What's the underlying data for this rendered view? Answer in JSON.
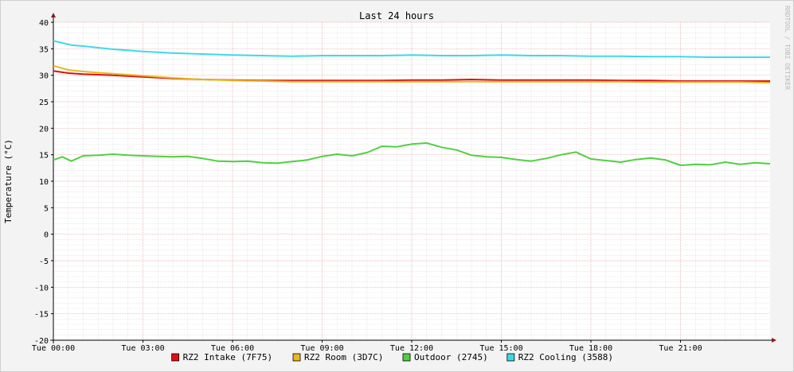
{
  "chart_data": {
    "type": "line",
    "title": "Last 24 hours",
    "ylabel": "Temperature (°C)",
    "xlabel": "",
    "watermark": "RRDTOOL / TOBI OETIKER",
    "ylim": [
      -20,
      40
    ],
    "xlim_hours": [
      0,
      24
    ],
    "y_ticks": [
      -20,
      -15,
      -10,
      -5,
      0,
      5,
      10,
      15,
      20,
      25,
      30,
      35,
      40
    ],
    "x_ticks": [
      {
        "h": 0,
        "label": "Tue 00:00"
      },
      {
        "h": 3,
        "label": "Tue 03:00"
      },
      {
        "h": 6,
        "label": "Tue 06:00"
      },
      {
        "h": 9,
        "label": "Tue 09:00"
      },
      {
        "h": 12,
        "label": "Tue 12:00"
      },
      {
        "h": 15,
        "label": "Tue 15:00"
      },
      {
        "h": 18,
        "label": "Tue 18:00"
      },
      {
        "h": 21,
        "label": "Tue 21:00"
      }
    ],
    "grid": true,
    "legend_position": "bottom",
    "series": [
      {
        "name": "RZ2 Intake (7F75)",
        "color": "#e01010",
        "x": [
          0,
          0.5,
          1,
          2,
          3,
          4,
          5,
          6,
          7,
          8,
          9,
          10,
          11,
          12,
          13,
          14,
          15,
          16,
          17,
          18,
          19,
          20,
          21,
          22,
          23,
          24
        ],
        "y": [
          30.8,
          30.4,
          30.2,
          30.0,
          29.7,
          29.4,
          29.2,
          29.1,
          29.0,
          29.0,
          29.0,
          29.0,
          29.0,
          29.1,
          29.1,
          29.2,
          29.1,
          29.1,
          29.1,
          29.1,
          29.0,
          29.0,
          28.9,
          28.9,
          28.9,
          28.9
        ]
      },
      {
        "name": "RZ2 Room (3D7C)",
        "color": "#e8b820",
        "x": [
          0,
          0.5,
          1,
          2,
          3,
          4,
          5,
          6,
          7,
          8,
          9,
          10,
          11,
          12,
          13,
          14,
          15,
          16,
          17,
          18,
          19,
          20,
          21,
          22,
          23,
          24
        ],
        "y": [
          31.8,
          31.0,
          30.7,
          30.3,
          29.9,
          29.5,
          29.2,
          29.0,
          28.9,
          28.8,
          28.8,
          28.8,
          28.8,
          28.8,
          28.8,
          28.8,
          28.8,
          28.8,
          28.8,
          28.8,
          28.8,
          28.7,
          28.7,
          28.7,
          28.7,
          28.6
        ]
      },
      {
        "name": "Outdoor (2745)",
        "color": "#50d040",
        "x": [
          0,
          0.3,
          0.6,
          1,
          1.5,
          2,
          2.5,
          3,
          3.5,
          4,
          4.5,
          5,
          5.5,
          6,
          6.5,
          7,
          7.5,
          8,
          8.5,
          9,
          9.5,
          10,
          10.5,
          11,
          11.5,
          12,
          12.5,
          13,
          13.5,
          14,
          14.5,
          15,
          15.5,
          16,
          16.5,
          17,
          17.5,
          18,
          18.5,
          19,
          19.5,
          20,
          20.5,
          21,
          21.5,
          22,
          22.5,
          23,
          23.5,
          24
        ],
        "y": [
          14.0,
          14.6,
          13.8,
          14.8,
          14.9,
          15.1,
          14.9,
          14.8,
          14.7,
          14.6,
          14.7,
          14.3,
          13.8,
          13.7,
          13.8,
          13.5,
          13.4,
          13.7,
          14.0,
          14.7,
          15.1,
          14.8,
          15.4,
          16.6,
          16.5,
          17.0,
          17.2,
          16.4,
          15.9,
          14.9,
          14.6,
          14.5,
          14.1,
          13.8,
          14.3,
          15.0,
          15.5,
          14.2,
          13.9,
          13.6,
          14.1,
          14.4,
          14.0,
          13.0,
          13.2,
          13.1,
          13.6,
          13.2,
          13.5,
          13.3
        ]
      },
      {
        "name": "RZ2 Cooling (3588)",
        "color": "#40d8e8",
        "x": [
          0,
          0.3,
          0.6,
          1,
          1.5,
          2,
          2.5,
          3,
          4,
          5,
          6,
          7,
          8,
          9,
          10,
          11,
          12,
          13,
          14,
          15,
          16,
          17,
          18,
          19,
          20,
          21,
          22,
          23,
          24
        ],
        "y": [
          36.5,
          36.1,
          35.7,
          35.5,
          35.2,
          34.9,
          34.7,
          34.5,
          34.2,
          34.0,
          33.8,
          33.7,
          33.6,
          33.7,
          33.7,
          33.7,
          33.8,
          33.7,
          33.7,
          33.8,
          33.7,
          33.7,
          33.6,
          33.6,
          33.5,
          33.5,
          33.4,
          33.4,
          33.4
        ]
      }
    ]
  }
}
